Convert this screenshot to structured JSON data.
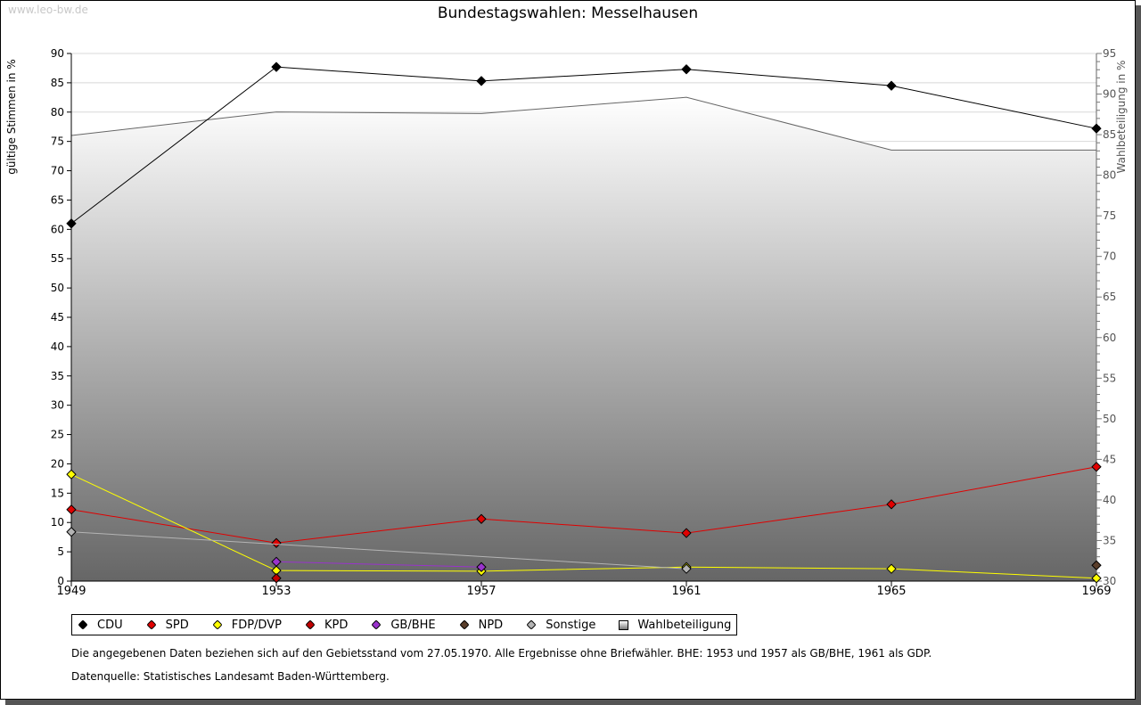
{
  "watermark": "www.leo-bw.de",
  "chart_data": {
    "type": "line",
    "title": "Bundestagswahlen: Messelhausen",
    "ylabel": "gültige Stimmen in %",
    "y2label": "Wahlbeteiligung in %",
    "x": [
      "1949",
      "1953",
      "1957",
      "1961",
      "1965",
      "1969"
    ],
    "ylim": [
      0,
      90
    ],
    "yticks": [
      0,
      5,
      10,
      15,
      20,
      25,
      30,
      35,
      40,
      45,
      50,
      55,
      60,
      65,
      70,
      75,
      80,
      85,
      90
    ],
    "y2lim": [
      30,
      95
    ],
    "y2ticks": [
      30,
      35,
      40,
      45,
      50,
      55,
      60,
      65,
      70,
      75,
      80,
      85,
      90,
      95
    ],
    "grid": true,
    "legend_position": "bottom",
    "area": {
      "name": "Wahlbeteiligung",
      "axis": "right",
      "values": [
        84.9,
        87.8,
        87.6,
        89.6,
        83.1,
        83.1
      ]
    },
    "series": [
      {
        "name": "CDU",
        "color": "#000000",
        "values": [
          61.0,
          87.7,
          85.3,
          87.3,
          84.5,
          77.2
        ]
      },
      {
        "name": "SPD",
        "color": "#e00000",
        "values": [
          12.2,
          6.5,
          10.6,
          8.2,
          13.1,
          19.5
        ]
      },
      {
        "name": "FDP/DVP",
        "color": "#ffff00",
        "values": [
          18.2,
          1.8,
          1.7,
          2.4,
          2.1,
          0.5
        ]
      },
      {
        "name": "KPD",
        "color": "#c00000",
        "values": [
          null,
          0.5,
          null,
          null,
          null,
          null
        ]
      },
      {
        "name": "GB/BHE",
        "color": "#9933cc",
        "values": [
          null,
          3.3,
          2.4,
          null,
          null,
          null
        ]
      },
      {
        "name": "NPD",
        "color": "#5a3e2b",
        "values": [
          null,
          null,
          null,
          null,
          null,
          2.7
        ]
      },
      {
        "name": "Sonstige",
        "color": "#b4b4b4",
        "values": [
          8.4,
          null,
          null,
          2.1,
          null,
          null
        ]
      }
    ]
  },
  "legend": {
    "area_label": "Wahlbeteiligung"
  },
  "notes": {
    "line1": "Die angegebenen Daten beziehen sich auf den Gebietsstand vom 27.05.1970. Alle Ergebnisse ohne Briefwähler. BHE: 1953 und 1957 als GB/BHE, 1961 als GDP.",
    "line2": "Datenquelle: Statistisches Landesamt Baden-Württemberg."
  }
}
